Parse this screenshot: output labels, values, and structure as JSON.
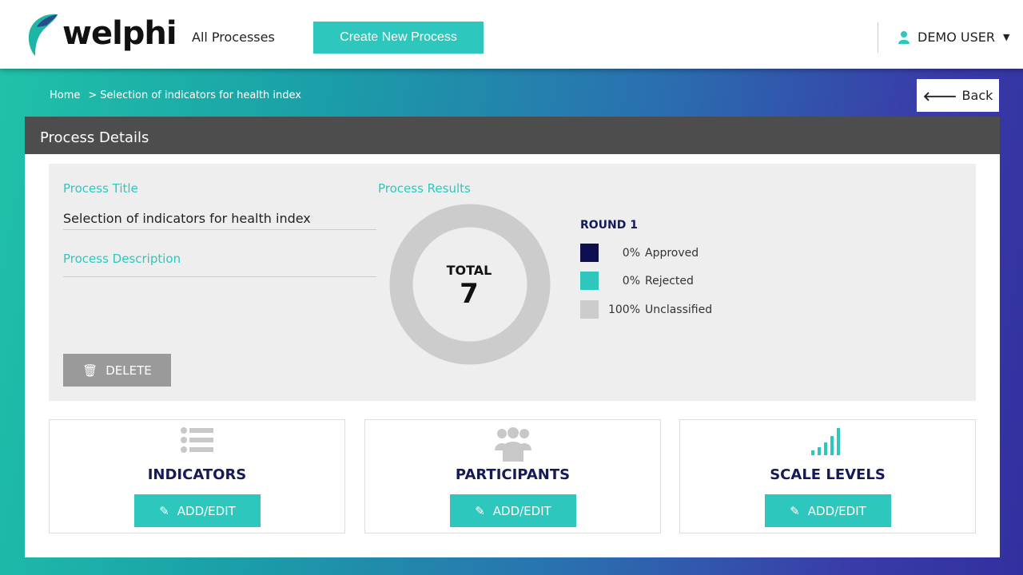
{
  "header": {
    "logo": "welphi",
    "nav_all": "All Processes",
    "create_button": "Create New Process",
    "user": "DEMO USER"
  },
  "breadcrumb": {
    "home": "Home",
    "separator": ">",
    "current": "Selection of indicators for health index"
  },
  "back_button": "Back",
  "panel": {
    "title": "Process Details",
    "process_title_label": "Process Title",
    "process_title": "Selection of indicators for health index",
    "process_description_label": "Process Description",
    "process_description": "",
    "delete_button": "DELETE",
    "results_label": "Process Results",
    "total_label": "TOTAL",
    "total_value": "7",
    "round": "ROUND 1",
    "legend": [
      {
        "pct": "0%",
        "label": "Approved",
        "color": "#0d0f4f",
        "value": 0
      },
      {
        "pct": "0%",
        "label": "Rejected",
        "color": "#2ec7bd",
        "value": 0
      },
      {
        "pct": "100%",
        "label": "Unclassified",
        "color": "#cccccc",
        "value": 100
      }
    ]
  },
  "cards": [
    {
      "title": "INDICATORS",
      "button": "ADD/EDIT",
      "icon": "list-icon"
    },
    {
      "title": "PARTICIPANTS",
      "button": "ADD/EDIT",
      "icon": "users-icon"
    },
    {
      "title": "SCALE LEVELS",
      "button": "ADD/EDIT",
      "icon": "signal-bars-icon"
    }
  ],
  "colors": {
    "accent": "#2ec7bd",
    "navy": "#141a5a"
  }
}
